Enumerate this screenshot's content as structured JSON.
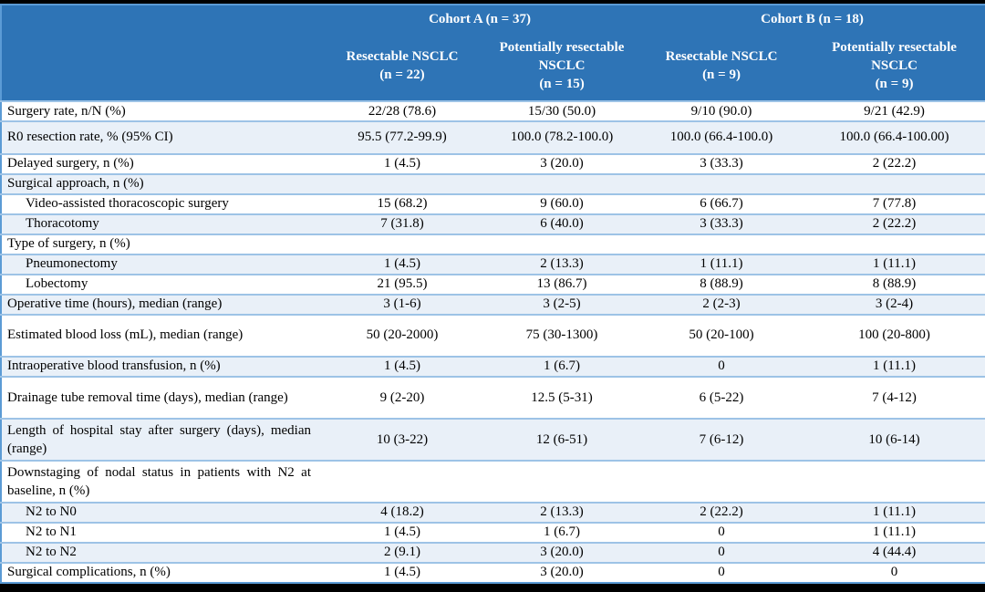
{
  "table": {
    "cohorts": [
      {
        "label": "Cohort A (n = 37)"
      },
      {
        "label": "Cohort B (n = 18)"
      }
    ],
    "columns": [
      {
        "title": "Resectable NSCLC",
        "n": "(n = 22)"
      },
      {
        "title": "Potentially resectable NSCLC",
        "n": "(n = 15)"
      },
      {
        "title": "Resectable NSCLC",
        "n": "(n = 9)"
      },
      {
        "title": "Potentially resectable NSCLC",
        "n": "(n = 9)"
      }
    ],
    "rows": [
      {
        "label": "Surgery rate, n/N (%)",
        "indent": false,
        "values": [
          "22/28 (78.6)",
          "15/30 (50.0)",
          "9/10 (90.0)",
          "9/21 (42.9)"
        ]
      },
      {
        "label": "R0 resection rate, % (95% CI)",
        "indent": false,
        "values": [
          "95.5 (77.2-99.9)",
          "100.0 (78.2-100.0)",
          "100.0 (66.4-100.0)",
          "100.0 (66.4-100.00)"
        ]
      },
      {
        "label": "Delayed surgery, n (%)",
        "indent": false,
        "values": [
          "1 (4.5)",
          "3 (20.0)",
          "3 (33.3)",
          "2 (22.2)"
        ]
      },
      {
        "label": "Surgical approach, n (%)",
        "indent": false,
        "values": [
          "",
          "",
          "",
          ""
        ]
      },
      {
        "label": "Video-assisted thoracoscopic surgery",
        "indent": true,
        "values": [
          "15 (68.2)",
          "9 (60.0)",
          "6 (66.7)",
          "7 (77.8)"
        ]
      },
      {
        "label": "Thoracotomy",
        "indent": true,
        "values": [
          "7 (31.8)",
          "6 (40.0)",
          "3 (33.3)",
          "2 (22.2)"
        ]
      },
      {
        "label": "Type of surgery, n (%)",
        "indent": false,
        "values": [
          "",
          "",
          "",
          ""
        ]
      },
      {
        "label": "Pneumonectomy",
        "indent": true,
        "values": [
          "1 (4.5)",
          "2 (13.3)",
          "1 (11.1)",
          "1 (11.1)"
        ]
      },
      {
        "label": "Lobectomy",
        "indent": true,
        "values": [
          "21 (95.5)",
          "13 (86.7)",
          "8 (88.9)",
          "8 (88.9)"
        ]
      },
      {
        "label": "Operative time (hours), median (range)",
        "indent": false,
        "values": [
          "3 (1-6)",
          "3 (2-5)",
          "2 (2-3)",
          "3 (2-4)"
        ]
      },
      {
        "label": "Estimated blood loss (mL), median (range)",
        "indent": false,
        "values": [
          "50 (20-2000)",
          "75 (30-1300)",
          "50 (20-100)",
          "100 (20-800)"
        ]
      },
      {
        "label": "Intraoperative blood transfusion, n (%)",
        "indent": false,
        "values": [
          "1 (4.5)",
          "1 (6.7)",
          "0",
          "1 (11.1)"
        ]
      },
      {
        "label": "Drainage tube removal time (days), median (range)",
        "indent": false,
        "values": [
          "9 (2-20)",
          "12.5 (5-31)",
          "6 (5-22)",
          "7 (4-12)"
        ]
      },
      {
        "label": "Length of hospital stay after surgery (days), median (range)",
        "indent": false,
        "values": [
          "10 (3-22)",
          "12 (6-51)",
          "7 (6-12)",
          "10 (6-14)"
        ]
      },
      {
        "label": "Downstaging of nodal status in patients with N2 at baseline, n (%)",
        "indent": false,
        "values": [
          "",
          "",
          "",
          ""
        ]
      },
      {
        "label": "N2 to N0",
        "indent": true,
        "values": [
          "4 (18.2)",
          "2 (13.3)",
          "2 (22.2)",
          "1 (11.1)"
        ]
      },
      {
        "label": "N2 to N1",
        "indent": true,
        "values": [
          "1 (4.5)",
          "1 (6.7)",
          "0",
          "1 (11.1)"
        ]
      },
      {
        "label": "N2 to N2",
        "indent": true,
        "values": [
          "2 (9.1)",
          "3 (20.0)",
          "0",
          "4 (44.4)"
        ]
      },
      {
        "label": "Surgical complications, n (%)",
        "indent": false,
        "values": [
          "1 (4.5)",
          "3 (20.0)",
          "0",
          "0"
        ]
      }
    ]
  },
  "colors": {
    "header_bg": "#2E74B6",
    "header_text": "#FFFFFF",
    "shaded_row_bg": "#E9F0F8",
    "row_border": "#9DC3E6",
    "outer_border": "#5B9BD5",
    "frame_bar": "#000000"
  }
}
